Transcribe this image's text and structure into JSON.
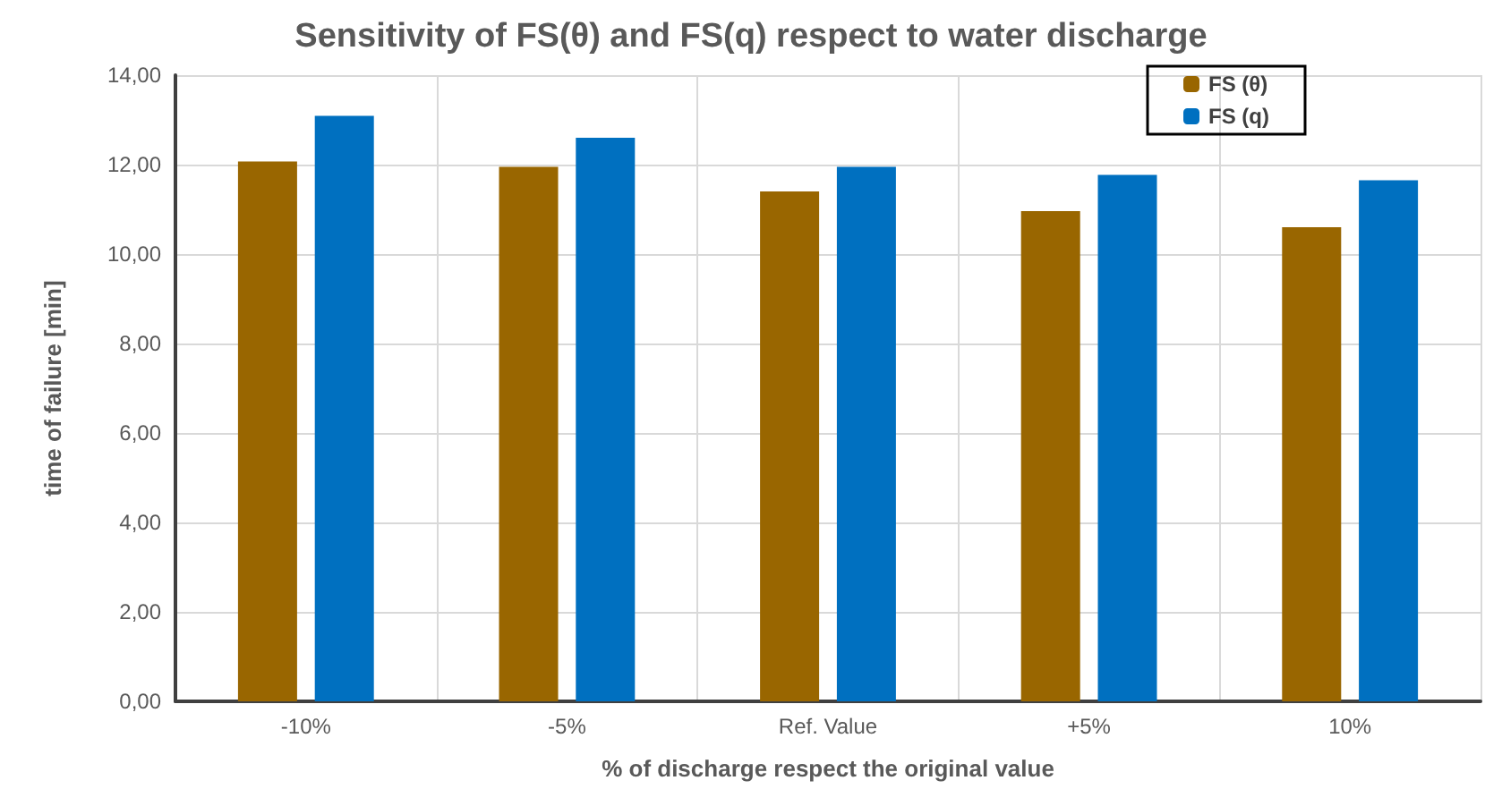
{
  "chart_data": {
    "type": "bar",
    "title": "Sensitivity of FS(θ) and FS(q) respect to water discharge",
    "xlabel": "% of discharge respect the original value",
    "ylabel": "time of failure [min]",
    "categories": [
      "-10%",
      "-5%",
      "Ref. Value",
      "+5%",
      "10%"
    ],
    "series": [
      {
        "name": "FS (θ)",
        "color": "#996600",
        "values": [
          12.07,
          11.95,
          11.4,
          10.96,
          10.6
        ]
      },
      {
        "name": "FS (q)",
        "color": "#0070c0",
        "values": [
          13.09,
          12.6,
          11.95,
          11.77,
          11.65
        ]
      }
    ],
    "ylim": [
      0,
      14
    ],
    "yticks": [
      {
        "value": 0,
        "label": "0,00"
      },
      {
        "value": 2,
        "label": "2,00"
      },
      {
        "value": 4,
        "label": "4,00"
      },
      {
        "value": 6,
        "label": "6,00"
      },
      {
        "value": 8,
        "label": "8,00"
      },
      {
        "value": 10,
        "label": "10,00"
      },
      {
        "value": 12,
        "label": "12,00"
      },
      {
        "value": 14,
        "label": "14,00"
      }
    ],
    "grid": true,
    "legend": "top right"
  }
}
